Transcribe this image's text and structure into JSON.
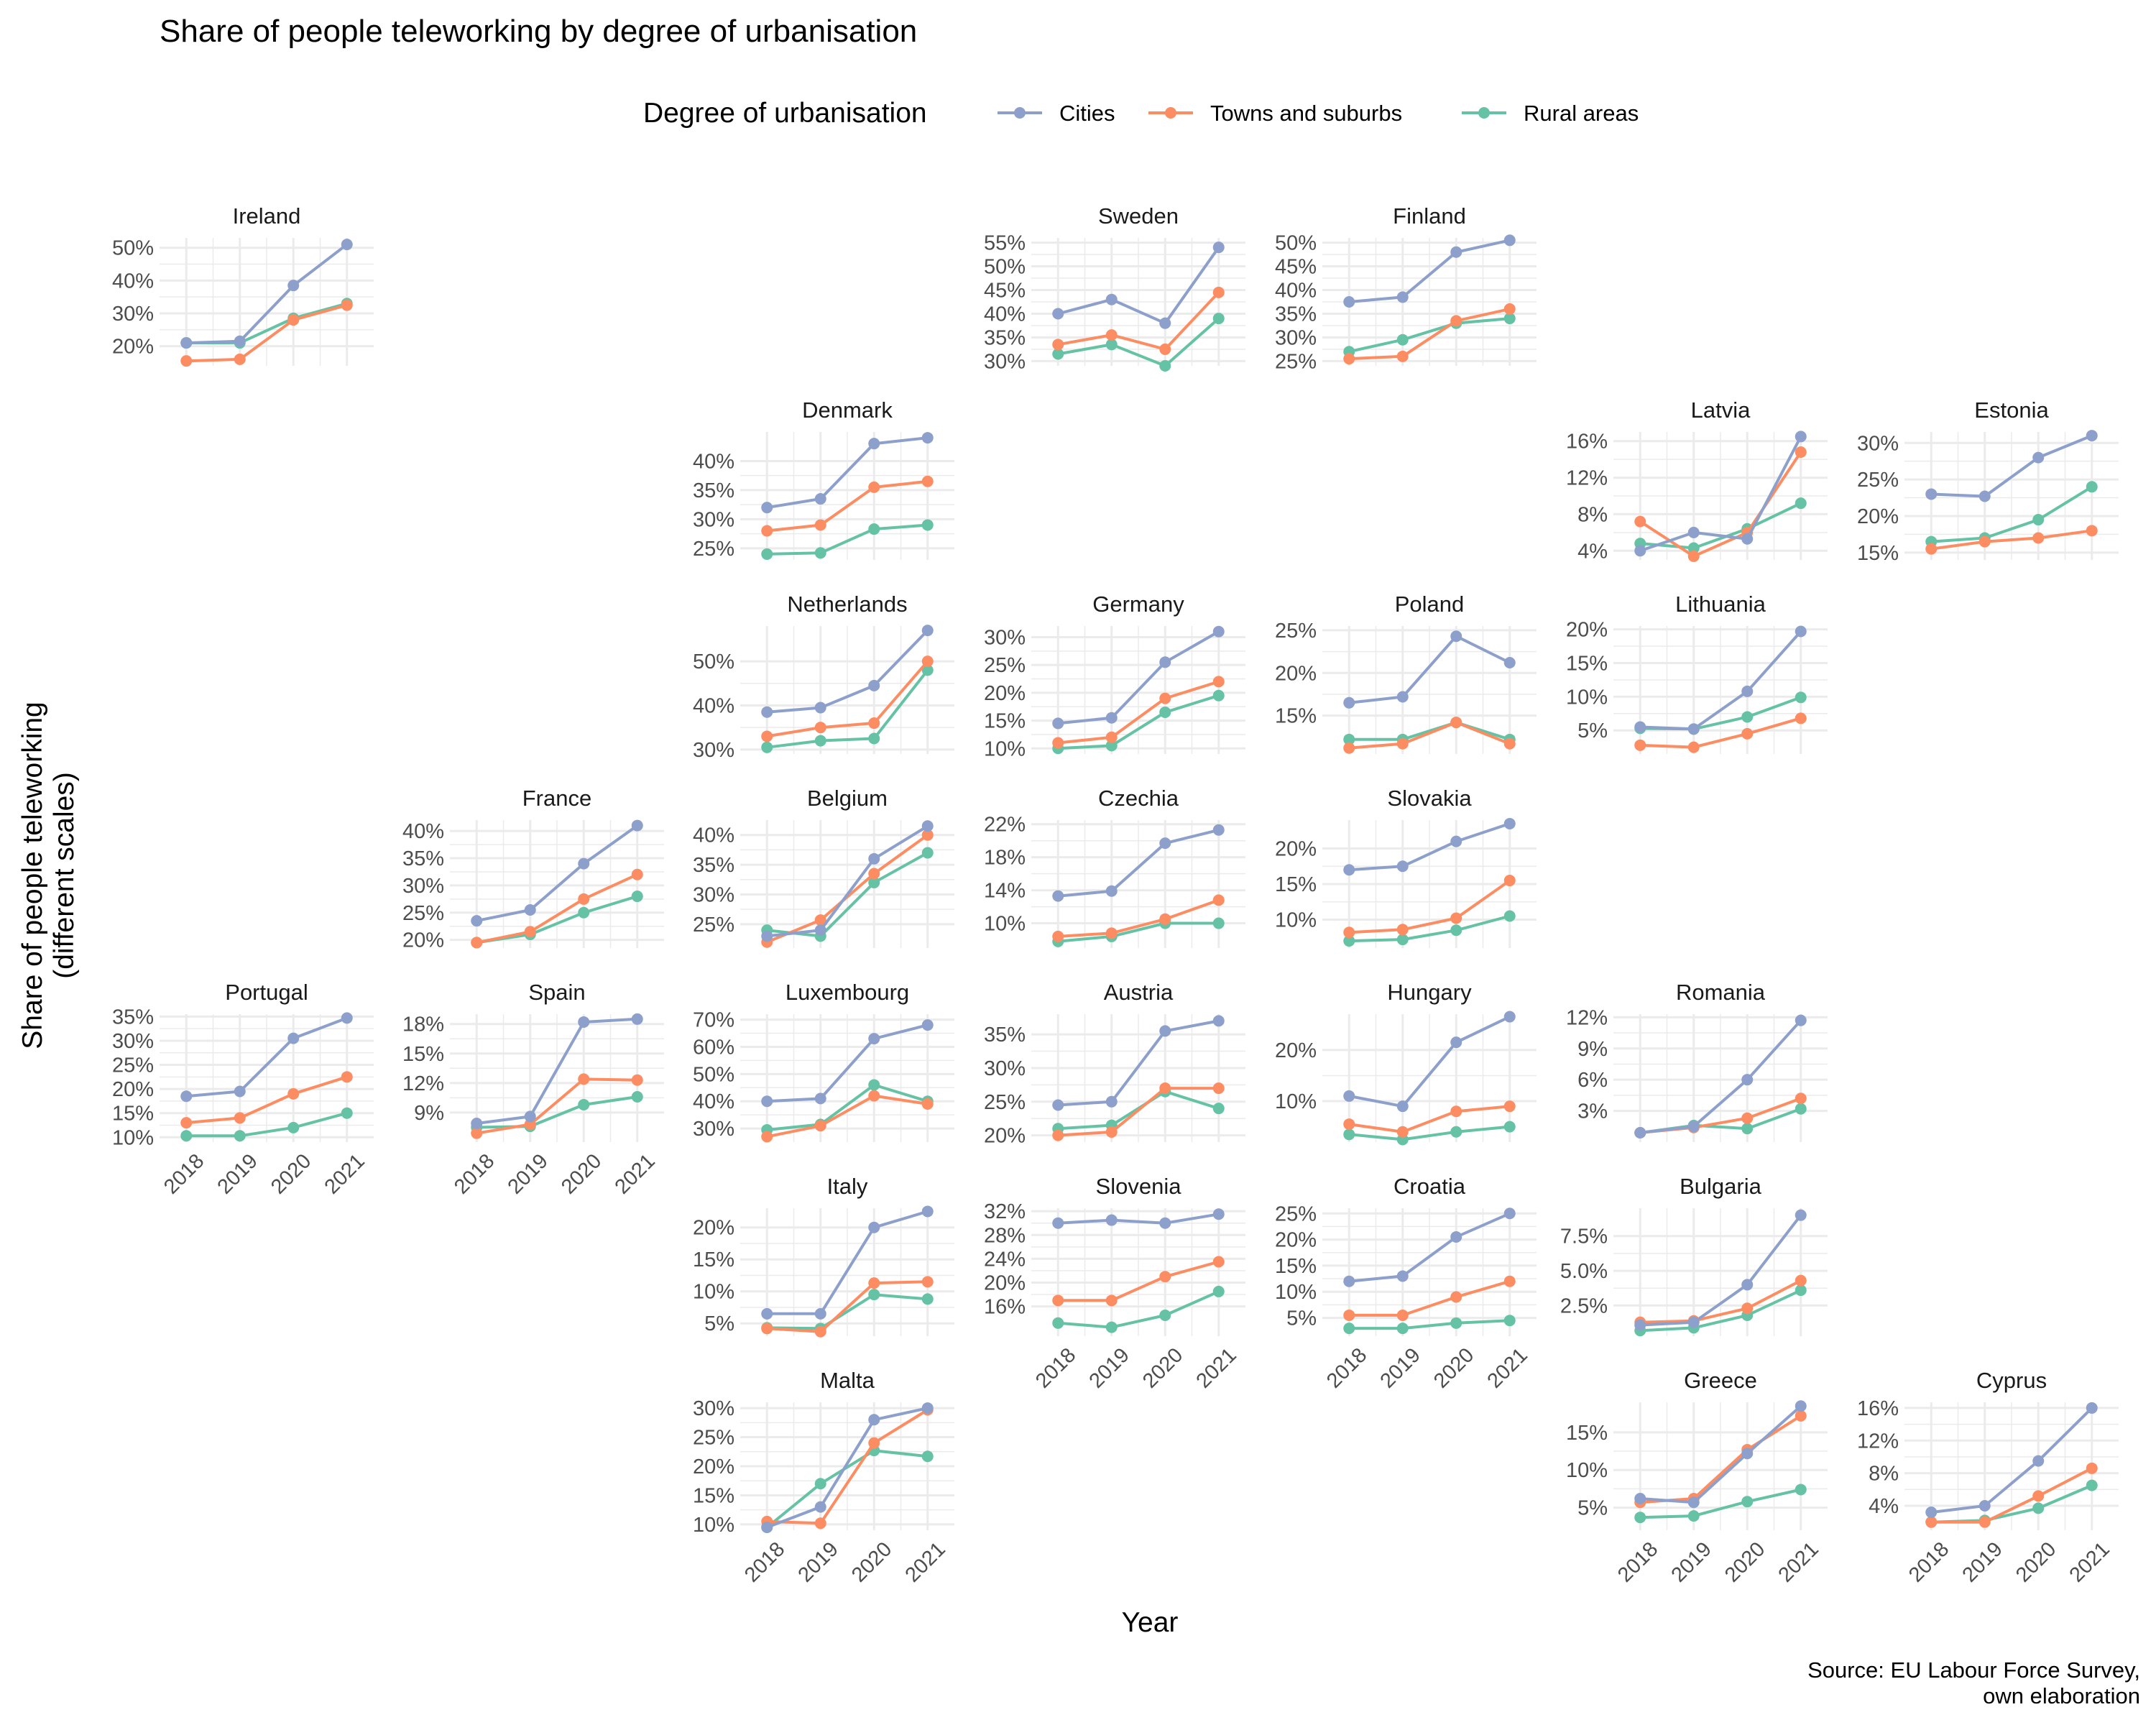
{
  "chart_data": {
    "type": "line",
    "title": "Share of people teleworking by degree of urbanisation",
    "xlabel": "Year",
    "ylabel_lines": [
      "Share of people teleworking",
      "(different scales)"
    ],
    "caption_lines": [
      "Source: EU Labour Force Survey,",
      "own elaboration"
    ],
    "legend": {
      "title": "Degree of urbanisation",
      "position": "top",
      "entries": [
        {
          "name": "Cities",
          "color": "#8da0cb"
        },
        {
          "name": "Towns and suburbs",
          "color": "#fc8d62"
        },
        {
          "name": "Rural areas",
          "color": "#66c2a5"
        }
      ]
    },
    "x": [
      "2018",
      "2019",
      "2020",
      "2021"
    ],
    "facets": [
      {
        "name": "Ireland",
        "row": 0,
        "col": 0,
        "ylim": [
          14,
          53
        ],
        "yticks": [
          20,
          30,
          40,
          50
        ],
        "tick_format": "%d%%",
        "series": {
          "cities": [
            21,
            21.5,
            38.5,
            51
          ],
          "towns": [
            15.5,
            16,
            28,
            32.5
          ],
          "rural": [
            21,
            21,
            28.5,
            33
          ]
        }
      },
      {
        "name": "Sweden",
        "row": 0,
        "col": 3,
        "ylim": [
          29,
          56
        ],
        "yticks": [
          30,
          35,
          40,
          45,
          50,
          55
        ],
        "tick_format": "%d%%",
        "series": {
          "cities": [
            40,
            43,
            38,
            54
          ],
          "towns": [
            33.5,
            35.5,
            32.5,
            44.5
          ],
          "rural": [
            31.5,
            33.5,
            29,
            39
          ]
        }
      },
      {
        "name": "Finland",
        "row": 0,
        "col": 4,
        "ylim": [
          24,
          51
        ],
        "yticks": [
          25,
          30,
          35,
          40,
          45,
          50
        ],
        "tick_format": "%d%%",
        "series": {
          "cities": [
            37.5,
            38.5,
            48,
            50.5
          ],
          "towns": [
            25.5,
            26,
            33.5,
            36
          ],
          "rural": [
            27,
            29.5,
            33,
            34
          ]
        }
      },
      {
        "name": "Denmark",
        "row": 1,
        "col": 2,
        "ylim": [
          23,
          45
        ],
        "yticks": [
          25,
          30,
          35,
          40
        ],
        "tick_format": "%d%%",
        "series": {
          "cities": [
            32,
            33.5,
            43,
            44
          ],
          "towns": [
            28,
            29,
            35.5,
            36.5
          ],
          "rural": [
            24,
            24.2,
            28.3,
            29
          ]
        }
      },
      {
        "name": "Latvia",
        "row": 1,
        "col": 5,
        "ylim": [
          3,
          17
        ],
        "yticks": [
          4,
          8,
          12,
          16
        ],
        "tick_format": "%d%%",
        "series": {
          "cities": [
            4,
            6,
            5.3,
            16.5
          ],
          "towns": [
            7.2,
            3.4,
            6,
            14.8
          ],
          "rural": [
            4.8,
            4.3,
            6.4,
            9.2
          ]
        }
      },
      {
        "name": "Estonia",
        "row": 1,
        "col": 6,
        "ylim": [
          14,
          31.5
        ],
        "yticks": [
          15,
          20,
          25,
          30
        ],
        "tick_format": "%d%%",
        "series": {
          "cities": [
            23,
            22.7,
            28,
            31
          ],
          "towns": [
            15.5,
            16.5,
            17,
            18
          ],
          "rural": [
            16.5,
            17,
            19.5,
            24
          ]
        }
      },
      {
        "name": "Netherlands",
        "row": 2,
        "col": 2,
        "ylim": [
          29,
          58
        ],
        "yticks": [
          30,
          40,
          50
        ],
        "tick_format": "%d%%",
        "series": {
          "cities": [
            38.5,
            39.5,
            44.5,
            57
          ],
          "towns": [
            33,
            35,
            36,
            50
          ],
          "rural": [
            30.5,
            32,
            32.5,
            48
          ]
        }
      },
      {
        "name": "Germany",
        "row": 2,
        "col": 3,
        "ylim": [
          9,
          32
        ],
        "yticks": [
          10,
          15,
          20,
          25,
          30
        ],
        "tick_format": "%d%%",
        "series": {
          "cities": [
            14.5,
            15.5,
            25.5,
            31
          ],
          "towns": [
            11,
            12,
            19,
            22
          ],
          "rural": [
            10,
            10.5,
            16.5,
            19.5
          ]
        }
      },
      {
        "name": "Poland",
        "row": 2,
        "col": 4,
        "ylim": [
          10.5,
          25.5
        ],
        "yticks": [
          15,
          20,
          25
        ],
        "tick_format": "%d%%",
        "series": {
          "cities": [
            16.5,
            17.2,
            24.3,
            21.2
          ],
          "towns": [
            11.2,
            11.7,
            14.2,
            11.7
          ],
          "rural": [
            12.2,
            12.2,
            14.2,
            12.2
          ]
        }
      },
      {
        "name": "Lithuania",
        "row": 2,
        "col": 5,
        "ylim": [
          1.5,
          20.5
        ],
        "yticks": [
          5,
          10,
          15,
          20
        ],
        "tick_format": "%d%%",
        "series": {
          "cities": [
            5.5,
            5.2,
            10.8,
            19.7
          ],
          "towns": [
            2.8,
            2.5,
            4.5,
            6.8
          ],
          "rural": [
            5.3,
            5.2,
            7,
            9.9
          ]
        }
      },
      {
        "name": "France",
        "row": 3,
        "col": 1,
        "ylim": [
          18.5,
          42
        ],
        "yticks": [
          20,
          25,
          30,
          35,
          40
        ],
        "tick_format": "%d%%",
        "series": {
          "cities": [
            23.5,
            25.5,
            34,
            41
          ],
          "towns": [
            19.5,
            21.5,
            27.5,
            32
          ],
          "rural": [
            19.5,
            21,
            25,
            28
          ]
        }
      },
      {
        "name": "Belgium",
        "row": 3,
        "col": 2,
        "ylim": [
          21,
          42.5
        ],
        "yticks": [
          25,
          30,
          35,
          40
        ],
        "tick_format": "%d%%",
        "series": {
          "cities": [
            23,
            24,
            36,
            41.5
          ],
          "towns": [
            22,
            25.7,
            33.5,
            40
          ],
          "rural": [
            24,
            23,
            32,
            37
          ]
        }
      },
      {
        "name": "Czechia",
        "row": 3,
        "col": 3,
        "ylim": [
          7,
          22.5
        ],
        "yticks": [
          10,
          14,
          18,
          22
        ],
        "tick_format": "%d%%",
        "series": {
          "cities": [
            13.3,
            13.9,
            19.7,
            21.3
          ],
          "towns": [
            8.4,
            8.8,
            10.5,
            12.8
          ],
          "rural": [
            7.8,
            8.4,
            10,
            10
          ]
        }
      },
      {
        "name": "Slovakia",
        "row": 3,
        "col": 4,
        "ylim": [
          6,
          24
        ],
        "yticks": [
          10,
          15,
          20
        ],
        "tick_format": "%d%%",
        "series": {
          "cities": [
            17,
            17.5,
            21,
            23.5
          ],
          "towns": [
            8.2,
            8.6,
            10.2,
            15.5
          ],
          "rural": [
            7,
            7.2,
            8.5,
            10.5
          ]
        }
      },
      {
        "name": "Portugal",
        "row": 4,
        "col": 0,
        "ylim": [
          9,
          35.5
        ],
        "yticks": [
          10,
          15,
          20,
          25,
          30,
          35
        ],
        "tick_format": "%d%%",
        "series": {
          "cities": [
            18.5,
            19.5,
            30.5,
            34.7
          ],
          "towns": [
            13,
            14,
            19,
            22.5
          ],
          "rural": [
            10.3,
            10.3,
            12,
            15
          ]
        }
      },
      {
        "name": "Spain",
        "row": 4,
        "col": 1,
        "ylim": [
          6,
          19
        ],
        "yticks": [
          9,
          12,
          15,
          18
        ],
        "tick_format": "%d%%",
        "series": {
          "cities": [
            7.9,
            8.6,
            18.2,
            18.5
          ],
          "towns": [
            6.9,
            7.8,
            12.4,
            12.3
          ],
          "rural": [
            7.5,
            7.6,
            9.8,
            10.6
          ]
        }
      },
      {
        "name": "Luxembourg",
        "row": 4,
        "col": 2,
        "ylim": [
          25,
          72
        ],
        "yticks": [
          30,
          40,
          50,
          60,
          70
        ],
        "tick_format": "%d%%",
        "series": {
          "cities": [
            40,
            41,
            63,
            68
          ],
          "towns": [
            27,
            31,
            42,
            39
          ],
          "rural": [
            29.5,
            31.5,
            46,
            40
          ]
        }
      },
      {
        "name": "Austria",
        "row": 4,
        "col": 3,
        "ylim": [
          19,
          38
        ],
        "yticks": [
          20,
          25,
          30,
          35
        ],
        "tick_format": "%d%%",
        "series": {
          "cities": [
            24.5,
            25,
            35.5,
            37
          ],
          "towns": [
            20,
            20.5,
            27,
            27
          ],
          "rural": [
            21,
            21.5,
            26.5,
            24
          ]
        }
      },
      {
        "name": "Hungary",
        "row": 4,
        "col": 4,
        "ylim": [
          2,
          27
        ],
        "yticks": [
          10,
          20
        ],
        "tick_format": "%d%%",
        "series": {
          "cities": [
            11,
            9,
            21.5,
            26.5
          ],
          "towns": [
            5.5,
            4,
            8,
            9
          ],
          "rural": [
            3.5,
            2.5,
            4,
            5
          ]
        }
      },
      {
        "name": "Romania",
        "row": 4,
        "col": 5,
        "ylim": [
          0,
          12.3
        ],
        "yticks": [
          3,
          6,
          9,
          12
        ],
        "tick_format": "%d%%",
        "series": {
          "cities": [
            0.9,
            1.5,
            6,
            11.7
          ],
          "towns": [
            0.9,
            1.4,
            2.3,
            4.2
          ],
          "rural": [
            0.9,
            1.6,
            1.3,
            3.2
          ]
        }
      },
      {
        "name": "Italy",
        "row": 5,
        "col": 2,
        "ylim": [
          3,
          23
        ],
        "yticks": [
          5,
          10,
          15,
          20
        ],
        "tick_format": "%d%%",
        "series": {
          "cities": [
            6.5,
            6.5,
            20,
            22.5
          ],
          "towns": [
            4.2,
            3.7,
            11.3,
            11.5
          ],
          "rural": [
            4.3,
            4.2,
            9.5,
            8.8
          ]
        }
      },
      {
        "name": "Slovenia",
        "row": 5,
        "col": 3,
        "ylim": [
          11,
          32.5
        ],
        "yticks": [
          16,
          20,
          24,
          28,
          32
        ],
        "tick_format": "%d%%",
        "series": {
          "cities": [
            30,
            30.5,
            30,
            31.5
          ],
          "towns": [
            17,
            17,
            21,
            23.5
          ],
          "rural": [
            13.2,
            12.5,
            14.5,
            18.5
          ]
        }
      },
      {
        "name": "Croatia",
        "row": 5,
        "col": 4,
        "ylim": [
          1.5,
          26
        ],
        "yticks": [
          5,
          10,
          15,
          20,
          25
        ],
        "tick_format": "%d%%",
        "series": {
          "cities": [
            12,
            13,
            20.5,
            25
          ],
          "towns": [
            5.5,
            5.5,
            9,
            12
          ],
          "rural": [
            3,
            3,
            4,
            4.5
          ]
        }
      },
      {
        "name": "Bulgaria",
        "row": 5,
        "col": 5,
        "ylim": [
          0.3,
          9.5
        ],
        "yticks": [
          2.5,
          5.0,
          7.5
        ],
        "tick_format": "%.1f%%",
        "series": {
          "cities": [
            1.1,
            1.3,
            4.0,
            9.0
          ],
          "towns": [
            1.3,
            1.4,
            2.3,
            4.3
          ],
          "rural": [
            0.7,
            0.9,
            1.8,
            3.6
          ]
        }
      },
      {
        "name": "Malta",
        "row": 6,
        "col": 2,
        "ylim": [
          9,
          31
        ],
        "yticks": [
          10,
          15,
          20,
          25,
          30
        ],
        "tick_format": "%d%%",
        "series": {
          "cities": [
            9.5,
            13,
            28,
            30
          ],
          "towns": [
            10.5,
            10.2,
            24,
            29.7
          ],
          "rural": [
            9.5,
            17,
            22.7,
            21.7
          ]
        }
      },
      {
        "name": "Greece",
        "row": 6,
        "col": 5,
        "ylim": [
          2,
          19
        ],
        "yticks": [
          5,
          10,
          15
        ],
        "tick_format": "%d%%",
        "series": {
          "cities": [
            6.2,
            5.7,
            12.2,
            18.5
          ],
          "towns": [
            5.7,
            6.2,
            12.7,
            17.2
          ],
          "rural": [
            3.7,
            3.9,
            5.8,
            7.4
          ]
        }
      },
      {
        "name": "Cyprus",
        "row": 6,
        "col": 6,
        "ylim": [
          1,
          16.7
        ],
        "yticks": [
          4,
          8,
          12,
          16
        ],
        "tick_format": "%d%%",
        "series": {
          "cities": [
            3.2,
            4,
            9.5,
            16
          ],
          "towns": [
            2,
            2,
            5.2,
            8.6
          ],
          "rural": [
            2,
            2.2,
            3.7,
            6.5
          ]
        }
      }
    ],
    "x_axis_text_shown_on": [
      "Portugal",
      "Spain",
      "Malta",
      "Slovenia",
      "Croatia",
      "Greece",
      "Cyprus"
    ]
  }
}
